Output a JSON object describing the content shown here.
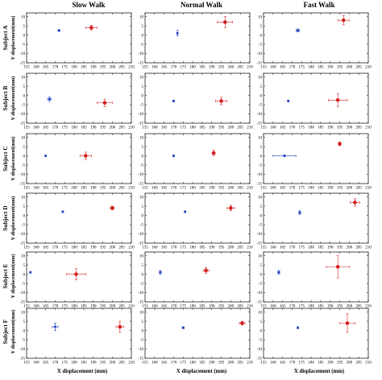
{
  "figure": {
    "columns": [
      "Slow Walk",
      "Normal Walk",
      "Fast Walk"
    ],
    "rows": [
      "Subject A",
      "Subject B",
      "Subject C",
      "Subject D",
      "Subject E",
      "Subject F"
    ],
    "y_axis_label": "Y displacement(mm)",
    "x_axis_label": "X displacement (mm)"
  },
  "chart_data": {
    "type": "scatter",
    "x_ticks": [
      155,
      160,
      165,
      170,
      175,
      180,
      185,
      190,
      195,
      200,
      205,
      210
    ],
    "y_ticks": [
      -15,
      -10,
      -5,
      0,
      5,
      10
    ],
    "xlim": [
      155,
      210
    ],
    "ylim": [
      -15,
      12
    ],
    "grid": false,
    "series_colors": {
      "blue": "#1f3fbf",
      "red": "#d42020"
    },
    "panels": [
      {
        "row": "Subject A",
        "column": "Slow Walk",
        "points": [
          {
            "color": "blue",
            "x": 172,
            "y": 2.5,
            "xerr": 0.5,
            "yerr": 0.5
          },
          {
            "color": "red",
            "x": 189,
            "y": 4,
            "xerr": 3,
            "yerr": 1.2
          }
        ]
      },
      {
        "row": "Subject A",
        "column": "Normal Walk",
        "points": [
          {
            "color": "blue",
            "x": 172,
            "y": 1,
            "xerr": 0.4,
            "yerr": 1.5
          },
          {
            "color": "red",
            "x": 197,
            "y": 7,
            "xerr": 4,
            "yerr": 3
          }
        ]
      },
      {
        "row": "Subject A",
        "column": "Fast Walk",
        "points": [
          {
            "color": "blue",
            "x": 173,
            "y": 2.5,
            "xerr": 1,
            "yerr": 0.8
          },
          {
            "color": "red",
            "x": 197,
            "y": 8,
            "xerr": 3,
            "yerr": 2.5
          }
        ]
      },
      {
        "row": "Subject B",
        "column": "Slow Walk",
        "points": [
          {
            "color": "blue",
            "x": 167,
            "y": -2,
            "xerr": 1,
            "yerr": 1.2
          },
          {
            "color": "red",
            "x": 196,
            "y": -4,
            "xerr": 4,
            "yerr": 2
          }
        ]
      },
      {
        "row": "Subject B",
        "column": "Normal Walk",
        "points": [
          {
            "color": "blue",
            "x": 170,
            "y": -3,
            "xerr": 0.4,
            "yerr": 0.5
          },
          {
            "color": "red",
            "x": 195,
            "y": -3,
            "xerr": 3,
            "yerr": 2
          }
        ]
      },
      {
        "row": "Subject B",
        "column": "Fast Walk",
        "points": [
          {
            "color": "blue",
            "x": 168,
            "y": -3,
            "xerr": 0.4,
            "yerr": 0.5
          },
          {
            "color": "red",
            "x": 194,
            "y": -2.5,
            "xerr": 5,
            "yerr": 3.5
          }
        ]
      },
      {
        "row": "Subject C",
        "column": "Slow Walk",
        "points": [
          {
            "color": "blue",
            "x": 165,
            "y": 0,
            "xerr": 0.3,
            "yerr": 0.3
          },
          {
            "color": "red",
            "x": 186,
            "y": 0,
            "xerr": 3,
            "yerr": 2
          }
        ]
      },
      {
        "row": "Subject C",
        "column": "Normal Walk",
        "points": [
          {
            "color": "blue",
            "x": 170,
            "y": 0,
            "xerr": 0.3,
            "yerr": 0.5
          },
          {
            "color": "red",
            "x": 191,
            "y": 1.5,
            "xerr": 0.8,
            "yerr": 1.5
          }
        ]
      },
      {
        "row": "Subject C",
        "column": "Fast Walk",
        "points": [
          {
            "color": "blue",
            "x": 166,
            "y": 0,
            "xerr": 6,
            "yerr": 0.5
          },
          {
            "color": "red",
            "x": 195,
            "y": 6.5,
            "xerr": 0.6,
            "yerr": 1
          }
        ]
      },
      {
        "row": "Subject D",
        "column": "Slow Walk",
        "points": [
          {
            "color": "blue",
            "x": 174,
            "y": 2,
            "xerr": 0.3,
            "yerr": 0.4
          },
          {
            "color": "red",
            "x": 200,
            "y": 4,
            "xerr": 1,
            "yerr": 1
          }
        ]
      },
      {
        "row": "Subject D",
        "column": "Normal Walk",
        "points": [
          {
            "color": "blue",
            "x": 176,
            "y": 2,
            "xerr": 0.3,
            "yerr": 0.4
          },
          {
            "color": "red",
            "x": 200,
            "y": 4,
            "xerr": 2,
            "yerr": 1.5
          }
        ]
      },
      {
        "row": "Subject D",
        "column": "Fast Walk",
        "points": [
          {
            "color": "blue",
            "x": 174,
            "y": 1.5,
            "xerr": 0.5,
            "yerr": 1
          },
          {
            "color": "red",
            "x": 203,
            "y": 7,
            "xerr": 2.5,
            "yerr": 2
          }
        ]
      },
      {
        "row": "Subject E",
        "column": "Slow Walk",
        "points": [
          {
            "color": "blue",
            "x": 157,
            "y": 1,
            "xerr": 0.3,
            "yerr": 0.4
          },
          {
            "color": "red",
            "x": 181,
            "y": 0,
            "xerr": 5,
            "yerr": 3
          }
        ]
      },
      {
        "row": "Subject E",
        "column": "Normal Walk",
        "points": [
          {
            "color": "blue",
            "x": 163,
            "y": 1,
            "xerr": 0.5,
            "yerr": 1
          },
          {
            "color": "red",
            "x": 187,
            "y": 2,
            "xerr": 1.5,
            "yerr": 1.5
          }
        ]
      },
      {
        "row": "Subject E",
        "column": "Fast Walk",
        "points": [
          {
            "color": "blue",
            "x": 163,
            "y": 1,
            "xerr": 0.5,
            "yerr": 1
          },
          {
            "color": "red",
            "x": 194,
            "y": 4,
            "xerr": 6,
            "yerr": 6
          }
        ]
      },
      {
        "row": "Subject F",
        "column": "Slow Walk",
        "points": [
          {
            "color": "blue",
            "x": 170,
            "y": 2,
            "xerr": 1.5,
            "yerr": 2
          },
          {
            "color": "red",
            "x": 204,
            "y": 2,
            "xerr": 2,
            "yerr": 3
          }
        ]
      },
      {
        "row": "Subject F",
        "column": "Normal Walk",
        "points": [
          {
            "color": "blue",
            "x": 175,
            "y": 1.5,
            "xerr": 0.5,
            "yerr": 0.5
          },
          {
            "color": "red",
            "x": 206,
            "y": 4,
            "xerr": 1.5,
            "yerr": 1
          }
        ]
      },
      {
        "row": "Subject F",
        "column": "Fast Walk",
        "points": [
          {
            "color": "blue",
            "x": 173,
            "y": 1.5,
            "xerr": 0.3,
            "yerr": 0.5
          },
          {
            "color": "red",
            "x": 199,
            "y": 4,
            "xerr": 4,
            "yerr": 5
          }
        ]
      }
    ]
  }
}
